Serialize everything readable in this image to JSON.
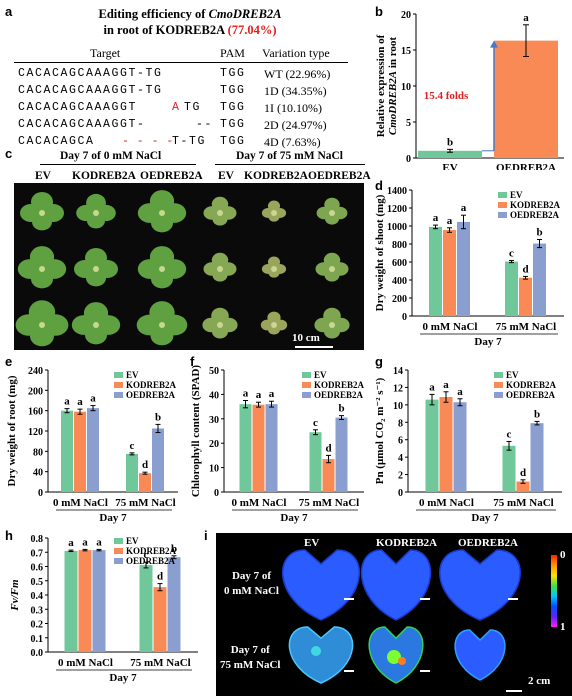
{
  "panels": {
    "a": "a",
    "b": "b",
    "c": "c",
    "d": "d",
    "e": "e",
    "f": "f",
    "g": "g",
    "h": "h",
    "i": "i"
  },
  "panel_a": {
    "title_line1_prefix": "Editing efficiency of ",
    "title_gene": "CmoDREB2A",
    "title_line2_prefix": "in root of KODREB2A ",
    "title_efficiency": "(77.04%)",
    "headers": {
      "target": "Target",
      "pam": "PAM",
      "variation": "Variation type"
    },
    "rows": [
      {
        "seq": "CACACAGCAAAGGT-TG",
        "mut": "",
        "seq_end": "",
        "pam": "TGG",
        "variation": "WT (22.96%)"
      },
      {
        "seq": "CACACAGCAAAGGT-TG",
        "mut": "",
        "seq_end": "",
        "pam": "TGG",
        "variation": "1D (34.35%)"
      },
      {
        "seq": "CACACAGCAAAGGT",
        "mut": "A",
        "seq_end": "TG",
        "pam": "TGG",
        "variation": "1I (10.10%)"
      },
      {
        "seq": "CACACAGCAAAGGT-",
        "mut": "",
        "seq_end": "--",
        "pam": "TGG",
        "variation": "2D (24.97%)"
      },
      {
        "seq": "CACACAGCA",
        "mut": "- - - -",
        "seq_end": "T-TG",
        "pam": "TGG",
        "variation": "4D (7.63%)"
      }
    ]
  },
  "panel_c": {
    "condition_left": "Day 7 of 0 mM NaCl",
    "condition_right": "Day 7 of 75 mM NaCl",
    "labels_left": [
      "EV",
      "KODREB2A",
      "OEDREB2A"
    ],
    "labels_right": [
      "EV",
      "KODREB2A",
      "OEDREB2A"
    ],
    "scale": "10 cm"
  },
  "panel_i": {
    "col_labels": [
      "EV",
      "KODREB2A",
      "OEDREB2A"
    ],
    "row_labels": [
      [
        "Day 7 of",
        "0 mM NaCl"
      ],
      [
        "Day 7 of",
        "75 mM NaCl"
      ]
    ],
    "colorbar_top": "0",
    "colorbar_bottom": "1",
    "scale": "2 cm"
  },
  "chart_data": [
    {
      "panel": "b",
      "type": "bar",
      "categories": [
        "EV",
        "OEDREB2A"
      ],
      "values": [
        1.0,
        16.3
      ],
      "errors": [
        0.2,
        2.2
      ],
      "letters": [
        "b",
        "a"
      ],
      "colors": [
        "#6fc79a",
        "#f98a55"
      ],
      "ylabel_line1": "Relative expression of",
      "ylabel_line2_gene": "CmoDREB2A",
      "ylabel_line2_suffix": " in root",
      "ylim": [
        0,
        20
      ],
      "yticks": [
        0,
        5,
        10,
        15,
        20
      ],
      "annotation": "15.4 folds"
    },
    {
      "panel": "d",
      "type": "bar",
      "categories": [
        "0 mM NaCl",
        "75 mM NaCl"
      ],
      "series": [
        {
          "name": "EV",
          "values": [
            990,
            605
          ],
          "errors": [
            20,
            12
          ],
          "letters": [
            "a",
            "c"
          ],
          "color": "#6fc79a"
        },
        {
          "name": "KODREB2A",
          "values": [
            955,
            425
          ],
          "errors": [
            25,
            15
          ],
          "letters": [
            "a",
            "d"
          ],
          "color": "#f98a55"
        },
        {
          "name": "OEDREB2A",
          "values": [
            1045,
            805
          ],
          "errors": [
            75,
            45
          ],
          "letters": [
            "a",
            "b"
          ],
          "color": "#8a9fcf"
        }
      ],
      "ylabel": "Dry weight of shoot (mg)",
      "xlabel": "Day 7",
      "ylim": [
        0,
        1400
      ],
      "yticks": [
        0,
        200,
        400,
        600,
        800,
        1000,
        1200,
        1400
      ]
    },
    {
      "panel": "e",
      "type": "bar",
      "categories": [
        "0 mM NaCl",
        "75 mM NaCl"
      ],
      "series": [
        {
          "name": "EV",
          "values": [
            160,
            75
          ],
          "errors": [
            4,
            2
          ],
          "letters": [
            "a",
            "c"
          ],
          "color": "#6fc79a"
        },
        {
          "name": "KODREB2A",
          "values": [
            158,
            37
          ],
          "errors": [
            5,
            2
          ],
          "letters": [
            "a",
            "d"
          ],
          "color": "#f98a55"
        },
        {
          "name": "OEDREB2A",
          "values": [
            165,
            125
          ],
          "errors": [
            5,
            8
          ],
          "letters": [
            "a",
            "b"
          ],
          "color": "#8a9fcf"
        }
      ],
      "ylabel": "Dry weight of root (mg)",
      "xlabel": "Day 7",
      "ylim": [
        0,
        240
      ],
      "yticks": [
        0,
        40,
        80,
        120,
        160,
        200,
        240
      ]
    },
    {
      "panel": "f",
      "type": "bar",
      "categories": [
        "0 mM NaCl",
        "75 mM NaCl"
      ],
      "series": [
        {
          "name": "EV",
          "values": [
            36,
            24.5
          ],
          "errors": [
            1.5,
            1
          ],
          "letters": [
            "a",
            "c"
          ],
          "color": "#6fc79a"
        },
        {
          "name": "KODREB2A",
          "values": [
            35.8,
            13.5
          ],
          "errors": [
            1,
            1.5
          ],
          "letters": [
            "a",
            "d"
          ],
          "color": "#f98a55"
        },
        {
          "name": "OEDREB2A",
          "values": [
            36,
            30.5
          ],
          "errors": [
            1.2,
            0.8
          ],
          "letters": [
            "a",
            "b"
          ],
          "color": "#8a9fcf"
        }
      ],
      "ylabel": "Chlorophyll content (SPAD)",
      "xlabel": "Day 7",
      "ylim": [
        0,
        50
      ],
      "yticks": [
        0,
        10,
        20,
        30,
        40,
        50
      ]
    },
    {
      "panel": "g",
      "type": "bar",
      "categories": [
        "0 mM NaCl",
        "75 mM NaCl"
      ],
      "series": [
        {
          "name": "EV",
          "values": [
            10.6,
            5.3
          ],
          "errors": [
            0.6,
            0.5
          ],
          "letters": [
            "a",
            "c"
          ],
          "color": "#6fc79a"
        },
        {
          "name": "KODREB2A",
          "values": [
            10.9,
            1.2
          ],
          "errors": [
            0.6,
            0.2
          ],
          "letters": [
            "a",
            "d"
          ],
          "color": "#f98a55"
        },
        {
          "name": "OEDREB2A",
          "values": [
            10.3,
            7.9
          ],
          "errors": [
            0.4,
            0.2
          ],
          "letters": [
            "a",
            "b"
          ],
          "color": "#8a9fcf"
        }
      ],
      "ylabel": "Pn (μmol CO₂ m⁻² s⁻¹)",
      "xlabel": "Day 7",
      "ylim": [
        0,
        14
      ],
      "yticks": [
        0,
        2,
        4,
        6,
        8,
        10,
        12,
        14
      ]
    },
    {
      "panel": "h",
      "type": "bar",
      "categories": [
        "0 mM NaCl",
        "75 mM NaCl"
      ],
      "series": [
        {
          "name": "EV",
          "values": [
            0.71,
            0.61
          ],
          "errors": [
            0.005,
            0.02
          ],
          "letters": [
            "a",
            "c"
          ],
          "color": "#6fc79a"
        },
        {
          "name": "KODREB2A",
          "values": [
            0.715,
            0.455
          ],
          "errors": [
            0.005,
            0.025
          ],
          "letters": [
            "a",
            "d"
          ],
          "color": "#f98a55"
        },
        {
          "name": "OEDREB2A",
          "values": [
            0.715,
            0.665
          ],
          "errors": [
            0.005,
            0.01
          ],
          "letters": [
            "a",
            "b"
          ],
          "color": "#8a9fcf"
        }
      ],
      "ylabel": "Fv/Fm",
      "xlabel": "Day 7",
      "ylim": [
        0,
        0.8
      ],
      "yticks": [
        0,
        0.1,
        0.2,
        0.3,
        0.4,
        0.5,
        0.6,
        0.7,
        0.8
      ]
    }
  ]
}
